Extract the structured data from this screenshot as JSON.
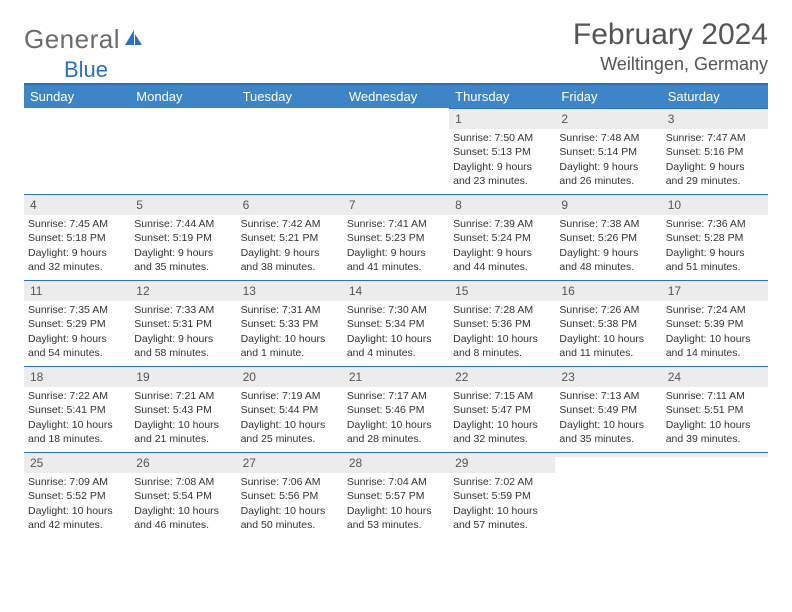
{
  "logo": {
    "general": "General",
    "blue": "Blue"
  },
  "title": "February 2024",
  "location": "Weiltingen, Germany",
  "colors": {
    "header_bg": "#3d85c6",
    "divider": "#2a72b5",
    "daynum_bg": "#ececec",
    "text": "#333333",
    "logo_gray": "#6b6b6b",
    "logo_blue": "#2a72b5"
  },
  "day_headers": [
    "Sunday",
    "Monday",
    "Tuesday",
    "Wednesday",
    "Thursday",
    "Friday",
    "Saturday"
  ],
  "weeks": [
    [
      null,
      null,
      null,
      null,
      {
        "n": "1",
        "sr": "Sunrise: 7:50 AM",
        "ss": "Sunset: 5:13 PM",
        "dl": "Daylight: 9 hours and 23 minutes."
      },
      {
        "n": "2",
        "sr": "Sunrise: 7:48 AM",
        "ss": "Sunset: 5:14 PM",
        "dl": "Daylight: 9 hours and 26 minutes."
      },
      {
        "n": "3",
        "sr": "Sunrise: 7:47 AM",
        "ss": "Sunset: 5:16 PM",
        "dl": "Daylight: 9 hours and 29 minutes."
      }
    ],
    [
      {
        "n": "4",
        "sr": "Sunrise: 7:45 AM",
        "ss": "Sunset: 5:18 PM",
        "dl": "Daylight: 9 hours and 32 minutes."
      },
      {
        "n": "5",
        "sr": "Sunrise: 7:44 AM",
        "ss": "Sunset: 5:19 PM",
        "dl": "Daylight: 9 hours and 35 minutes."
      },
      {
        "n": "6",
        "sr": "Sunrise: 7:42 AM",
        "ss": "Sunset: 5:21 PM",
        "dl": "Daylight: 9 hours and 38 minutes."
      },
      {
        "n": "7",
        "sr": "Sunrise: 7:41 AM",
        "ss": "Sunset: 5:23 PM",
        "dl": "Daylight: 9 hours and 41 minutes."
      },
      {
        "n": "8",
        "sr": "Sunrise: 7:39 AM",
        "ss": "Sunset: 5:24 PM",
        "dl": "Daylight: 9 hours and 44 minutes."
      },
      {
        "n": "9",
        "sr": "Sunrise: 7:38 AM",
        "ss": "Sunset: 5:26 PM",
        "dl": "Daylight: 9 hours and 48 minutes."
      },
      {
        "n": "10",
        "sr": "Sunrise: 7:36 AM",
        "ss": "Sunset: 5:28 PM",
        "dl": "Daylight: 9 hours and 51 minutes."
      }
    ],
    [
      {
        "n": "11",
        "sr": "Sunrise: 7:35 AM",
        "ss": "Sunset: 5:29 PM",
        "dl": "Daylight: 9 hours and 54 minutes."
      },
      {
        "n": "12",
        "sr": "Sunrise: 7:33 AM",
        "ss": "Sunset: 5:31 PM",
        "dl": "Daylight: 9 hours and 58 minutes."
      },
      {
        "n": "13",
        "sr": "Sunrise: 7:31 AM",
        "ss": "Sunset: 5:33 PM",
        "dl": "Daylight: 10 hours and 1 minute."
      },
      {
        "n": "14",
        "sr": "Sunrise: 7:30 AM",
        "ss": "Sunset: 5:34 PM",
        "dl": "Daylight: 10 hours and 4 minutes."
      },
      {
        "n": "15",
        "sr": "Sunrise: 7:28 AM",
        "ss": "Sunset: 5:36 PM",
        "dl": "Daylight: 10 hours and 8 minutes."
      },
      {
        "n": "16",
        "sr": "Sunrise: 7:26 AM",
        "ss": "Sunset: 5:38 PM",
        "dl": "Daylight: 10 hours and 11 minutes."
      },
      {
        "n": "17",
        "sr": "Sunrise: 7:24 AM",
        "ss": "Sunset: 5:39 PM",
        "dl": "Daylight: 10 hours and 14 minutes."
      }
    ],
    [
      {
        "n": "18",
        "sr": "Sunrise: 7:22 AM",
        "ss": "Sunset: 5:41 PM",
        "dl": "Daylight: 10 hours and 18 minutes."
      },
      {
        "n": "19",
        "sr": "Sunrise: 7:21 AM",
        "ss": "Sunset: 5:43 PM",
        "dl": "Daylight: 10 hours and 21 minutes."
      },
      {
        "n": "20",
        "sr": "Sunrise: 7:19 AM",
        "ss": "Sunset: 5:44 PM",
        "dl": "Daylight: 10 hours and 25 minutes."
      },
      {
        "n": "21",
        "sr": "Sunrise: 7:17 AM",
        "ss": "Sunset: 5:46 PM",
        "dl": "Daylight: 10 hours and 28 minutes."
      },
      {
        "n": "22",
        "sr": "Sunrise: 7:15 AM",
        "ss": "Sunset: 5:47 PM",
        "dl": "Daylight: 10 hours and 32 minutes."
      },
      {
        "n": "23",
        "sr": "Sunrise: 7:13 AM",
        "ss": "Sunset: 5:49 PM",
        "dl": "Daylight: 10 hours and 35 minutes."
      },
      {
        "n": "24",
        "sr": "Sunrise: 7:11 AM",
        "ss": "Sunset: 5:51 PM",
        "dl": "Daylight: 10 hours and 39 minutes."
      }
    ],
    [
      {
        "n": "25",
        "sr": "Sunrise: 7:09 AM",
        "ss": "Sunset: 5:52 PM",
        "dl": "Daylight: 10 hours and 42 minutes."
      },
      {
        "n": "26",
        "sr": "Sunrise: 7:08 AM",
        "ss": "Sunset: 5:54 PM",
        "dl": "Daylight: 10 hours and 46 minutes."
      },
      {
        "n": "27",
        "sr": "Sunrise: 7:06 AM",
        "ss": "Sunset: 5:56 PM",
        "dl": "Daylight: 10 hours and 50 minutes."
      },
      {
        "n": "28",
        "sr": "Sunrise: 7:04 AM",
        "ss": "Sunset: 5:57 PM",
        "dl": "Daylight: 10 hours and 53 minutes."
      },
      {
        "n": "29",
        "sr": "Sunrise: 7:02 AM",
        "ss": "Sunset: 5:59 PM",
        "dl": "Daylight: 10 hours and 57 minutes."
      },
      null,
      null
    ]
  ]
}
